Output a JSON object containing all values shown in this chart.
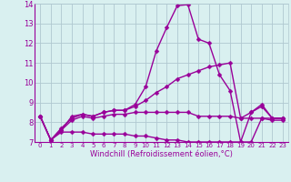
{
  "xlabel": "Windchill (Refroidissement éolien,°C)",
  "x": [
    0,
    1,
    2,
    3,
    4,
    5,
    6,
    7,
    8,
    9,
    10,
    11,
    12,
    13,
    14,
    15,
    16,
    17,
    18,
    19,
    20,
    21,
    22,
    23
  ],
  "line1": [
    8.3,
    7.1,
    7.6,
    8.3,
    8.4,
    8.3,
    8.5,
    8.6,
    8.6,
    8.9,
    9.8,
    11.6,
    12.8,
    13.9,
    13.95,
    12.2,
    12.0,
    10.4,
    9.6,
    7.0,
    8.5,
    8.9,
    8.2,
    8.2
  ],
  "line2": [
    8.3,
    7.1,
    7.7,
    8.2,
    8.4,
    8.3,
    8.5,
    8.6,
    8.6,
    8.8,
    9.1,
    9.5,
    9.8,
    10.2,
    10.4,
    10.6,
    10.8,
    10.9,
    11.0,
    8.2,
    8.5,
    8.8,
    8.2,
    8.2
  ],
  "line3": [
    8.3,
    7.1,
    7.6,
    8.1,
    8.3,
    8.2,
    8.3,
    8.4,
    8.4,
    8.5,
    8.5,
    8.5,
    8.5,
    8.5,
    8.5,
    8.3,
    8.3,
    8.3,
    8.3,
    8.2,
    8.2,
    8.2,
    8.2,
    8.2
  ],
  "line4": [
    8.3,
    7.1,
    7.5,
    7.5,
    7.5,
    7.4,
    7.4,
    7.4,
    7.4,
    7.3,
    7.3,
    7.2,
    7.1,
    7.1,
    7.0,
    7.0,
    7.0,
    7.0,
    7.0,
    7.0,
    7.0,
    8.2,
    8.1,
    8.1
  ],
  "line_color": "#990099",
  "bg_color": "#d9f0f0",
  "grid_color": "#b0c8d0",
  "ylim": [
    7,
    14
  ],
  "yticks": [
    7,
    8,
    9,
    10,
    11,
    12,
    13,
    14
  ],
  "xticks": [
    0,
    1,
    2,
    3,
    4,
    5,
    6,
    7,
    8,
    9,
    10,
    11,
    12,
    13,
    14,
    15,
    16,
    17,
    18,
    19,
    20,
    21,
    22,
    23
  ],
  "markersize": 2.5,
  "linewidth": 1.0
}
